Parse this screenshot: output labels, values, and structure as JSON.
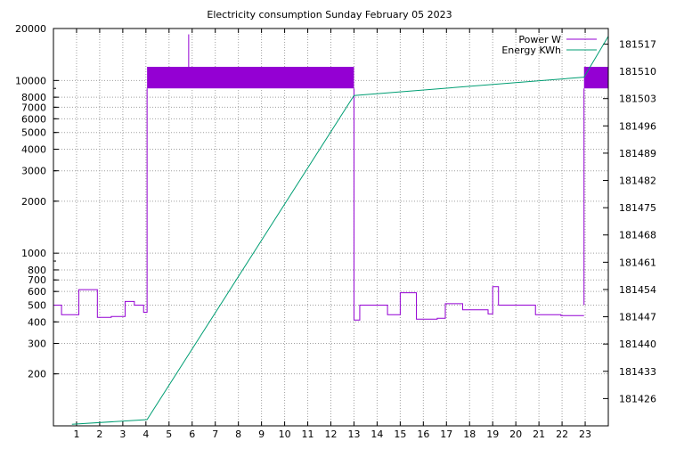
{
  "chart_data": {
    "type": "line",
    "title": "Electricity consumption Sunday February 05 2023",
    "x_ticks": [
      1,
      2,
      3,
      4,
      5,
      6,
      7,
      8,
      9,
      10,
      11,
      12,
      13,
      14,
      15,
      16,
      17,
      18,
      19,
      20,
      21,
      22,
      23
    ],
    "xlim": [
      0,
      24
    ],
    "y_left": {
      "scale": "log",
      "ylim": [
        100,
        20000
      ],
      "ticks": [
        200,
        300,
        400,
        500,
        600,
        700,
        800,
        1000,
        2000,
        3000,
        4000,
        5000,
        6000,
        7000,
        8000,
        10000,
        20000
      ],
      "minor_ticks": [
        200,
        300,
        400,
        500,
        600,
        700,
        800,
        900,
        2000,
        3000,
        4000,
        5000,
        6000,
        7000,
        8000,
        9000
      ]
    },
    "y_right": {
      "scale": "linear",
      "ylim": [
        181419,
        181521
      ],
      "ticks": [
        181426,
        181433,
        181440,
        181447,
        181454,
        181461,
        181468,
        181475,
        181482,
        181489,
        181496,
        181503,
        181510,
        181517
      ]
    },
    "legend_position": "top-right",
    "series": [
      {
        "name": "Power W",
        "axis": "left",
        "color": "#9400d3",
        "style": "steps",
        "points": [
          [
            0,
            500
          ],
          [
            0.35,
            440
          ],
          [
            1.1,
            615
          ],
          [
            1.9,
            425
          ],
          [
            2.5,
            430
          ],
          [
            3.1,
            525
          ],
          [
            3.5,
            500
          ],
          [
            3.9,
            455
          ],
          [
            4.05,
            500
          ]
        ]
      },
      {
        "name": "Power W",
        "axis": "left",
        "color": "#9400d3",
        "style": "band",
        "band": {
          "x_start": 4.05,
          "x_end": 13.0,
          "low": 9000,
          "high": 12000,
          "spike_x": 5.85,
          "spike_top": 18500
        }
      },
      {
        "name": "Power W",
        "axis": "left",
        "color": "#9400d3",
        "style": "steps",
        "points": [
          [
            13.0,
            410
          ],
          [
            13.25,
            500
          ],
          [
            14.45,
            440
          ],
          [
            15.0,
            590
          ],
          [
            15.7,
            415
          ],
          [
            16.6,
            420
          ],
          [
            16.95,
            510
          ],
          [
            17.7,
            470
          ],
          [
            18.8,
            445
          ],
          [
            19.0,
            640
          ],
          [
            19.25,
            500
          ],
          [
            20.85,
            440
          ],
          [
            21.95,
            435
          ],
          [
            22.95,
            435
          ]
        ]
      },
      {
        "name": "Power W",
        "axis": "left",
        "color": "#9400d3",
        "style": "band",
        "band": {
          "x_start": 22.95,
          "x_end": 24.0,
          "low": 9000,
          "high": 12000
        }
      },
      {
        "name": "Energy KWh",
        "axis": "right",
        "color": "#009e73",
        "style": "line",
        "points": [
          [
            0.8,
            181419.4
          ],
          [
            4.05,
            181420.6
          ],
          [
            13.0,
            181503.8
          ],
          [
            22.95,
            181508.5
          ],
          [
            24.0,
            181519.0
          ]
        ]
      }
    ]
  }
}
